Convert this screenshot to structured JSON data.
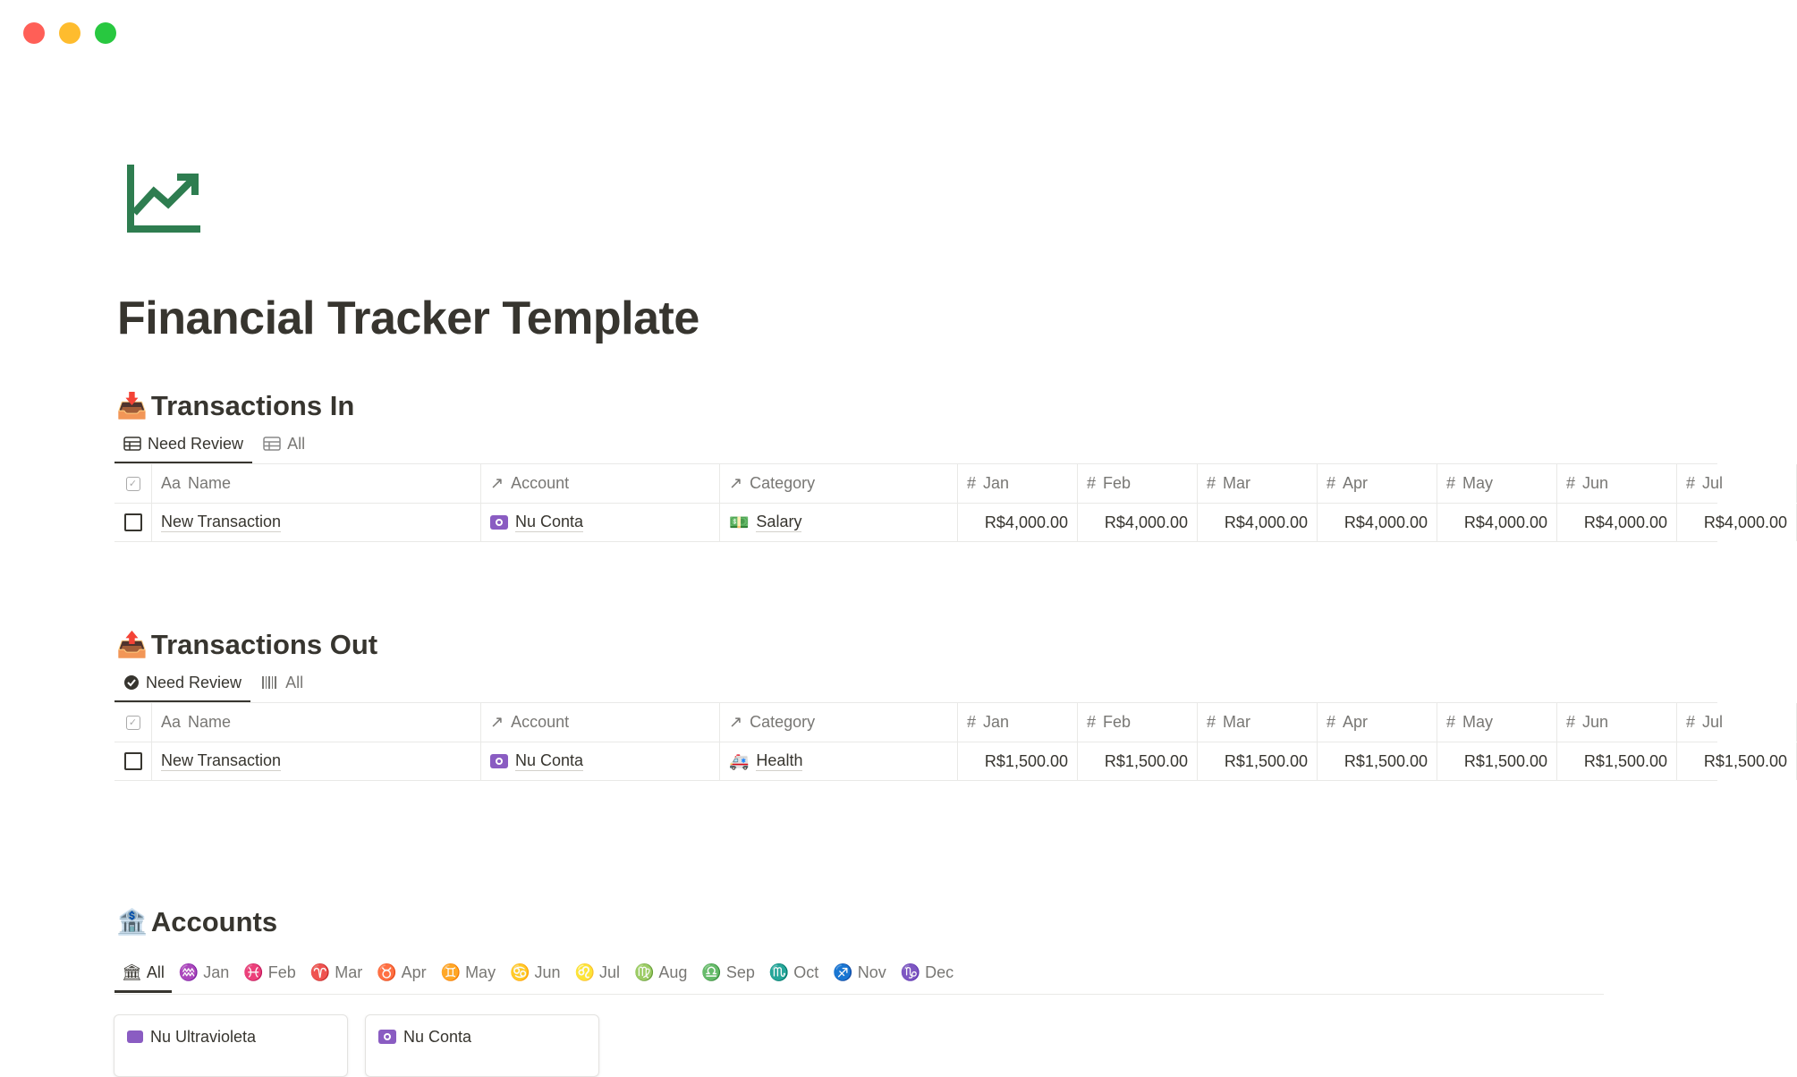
{
  "window": {
    "controls": [
      {
        "name": "close",
        "color": "#ff5f57"
      },
      {
        "name": "minimize",
        "color": "#febc2e"
      },
      {
        "name": "zoom",
        "color": "#28c840"
      }
    ]
  },
  "page": {
    "icon": "chart-trending-up-icon",
    "icon_color": "#2e7d50",
    "title": "Financial Tracker Template"
  },
  "transactions_in": {
    "heading": "Transactions In",
    "emoji": "📥",
    "tabs": [
      {
        "label": "Need Review",
        "icon": "table-icon",
        "active": true
      },
      {
        "label": "All",
        "icon": "table-icon",
        "active": false
      }
    ],
    "columns": {
      "name": "Name",
      "name_icon": "Aa",
      "account": "Account",
      "category": "Category",
      "months": [
        "Jan",
        "Feb",
        "Mar",
        "Apr",
        "May",
        "Jun",
        "Jul"
      ]
    },
    "rows": [
      {
        "name": "New Transaction",
        "account": "Nu Conta",
        "category": "Salary",
        "category_emoji": "💵",
        "values": [
          "R$4,000.00",
          "R$4,000.00",
          "R$4,000.00",
          "R$4,000.00",
          "R$4,000.00",
          "R$4,000.00",
          "R$4,000.00"
        ]
      }
    ]
  },
  "transactions_out": {
    "heading": "Transactions Out",
    "emoji": "📤",
    "tabs": [
      {
        "label": "Need Review",
        "icon": "check-circle-icon",
        "active": true
      },
      {
        "label": "All",
        "icon": "barcode-icon",
        "active": false
      }
    ],
    "columns": {
      "name": "Name",
      "name_icon": "Aa",
      "account": "Account",
      "category": "Category",
      "months": [
        "Jan",
        "Feb",
        "Mar",
        "Apr",
        "May",
        "Jun",
        "Jul"
      ]
    },
    "rows": [
      {
        "name": "New Transaction",
        "account": "Nu Conta",
        "category": "Health",
        "category_emoji": "🚑",
        "values": [
          "R$1,500.00",
          "R$1,500.00",
          "R$1,500.00",
          "R$1,500.00",
          "R$1,500.00",
          "R$1,500.00",
          "R$1,500.00"
        ]
      }
    ]
  },
  "accounts": {
    "heading": "Accounts",
    "emoji": "🏦",
    "tabs": [
      {
        "label": "All",
        "glyph": "🏛"
      },
      {
        "label": "Jan",
        "glyph": "♒"
      },
      {
        "label": "Feb",
        "glyph": "♓"
      },
      {
        "label": "Mar",
        "glyph": "♈"
      },
      {
        "label": "Apr",
        "glyph": "♉"
      },
      {
        "label": "May",
        "glyph": "♊"
      },
      {
        "label": "Jun",
        "glyph": "♋"
      },
      {
        "label": "Jul",
        "glyph": "♌"
      },
      {
        "label": "Aug",
        "glyph": "♍"
      },
      {
        "label": "Sep",
        "glyph": "♎"
      },
      {
        "label": "Oct",
        "glyph": "♏"
      },
      {
        "label": "Nov",
        "glyph": "♐"
      },
      {
        "label": "Dec",
        "glyph": "♑"
      }
    ],
    "cards": [
      {
        "name": "Nu Ultravioleta",
        "icon": "credit-card-icon"
      },
      {
        "name": "Nu Conta",
        "icon": "nu-conta-icon"
      }
    ],
    "accent": "#8a5cc2"
  }
}
